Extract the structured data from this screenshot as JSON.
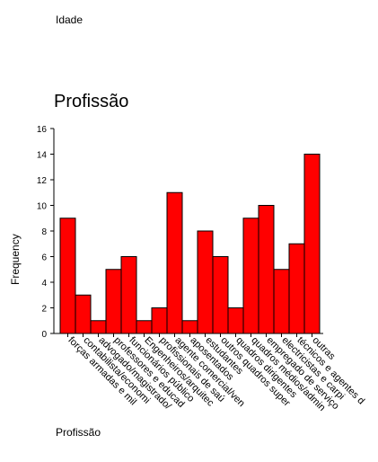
{
  "top_label": "Idade",
  "bottom_label": "Profissão",
  "chart_data": {
    "type": "bar",
    "title": "Profissão",
    "xlabel": "",
    "ylabel": "Frequency",
    "ylim": [
      0,
      16
    ],
    "yticks": [
      0,
      2,
      4,
      6,
      8,
      10,
      12,
      14,
      16
    ],
    "categories": [
      "forças armadas e mil",
      "contabilista/economi",
      "advogado/magistrado/",
      "professores e educad",
      "funcionários público",
      "Engenheiros/arquitec",
      "profissionais de saú",
      "agente comercial/ven",
      "aposentados",
      "estudantes",
      "outros quadros super",
      "quadros dirigentes",
      "quadros médios/admin",
      "empregado de serviço",
      "electricistas e carpi",
      "técnicos e agentes d",
      "outras"
    ],
    "values": [
      9,
      3,
      1,
      5,
      6,
      1,
      2,
      11,
      1,
      8,
      6,
      2,
      9,
      10,
      5,
      7,
      14
    ],
    "colors": {
      "bar": "#ff0000",
      "edge": "#000000"
    }
  }
}
